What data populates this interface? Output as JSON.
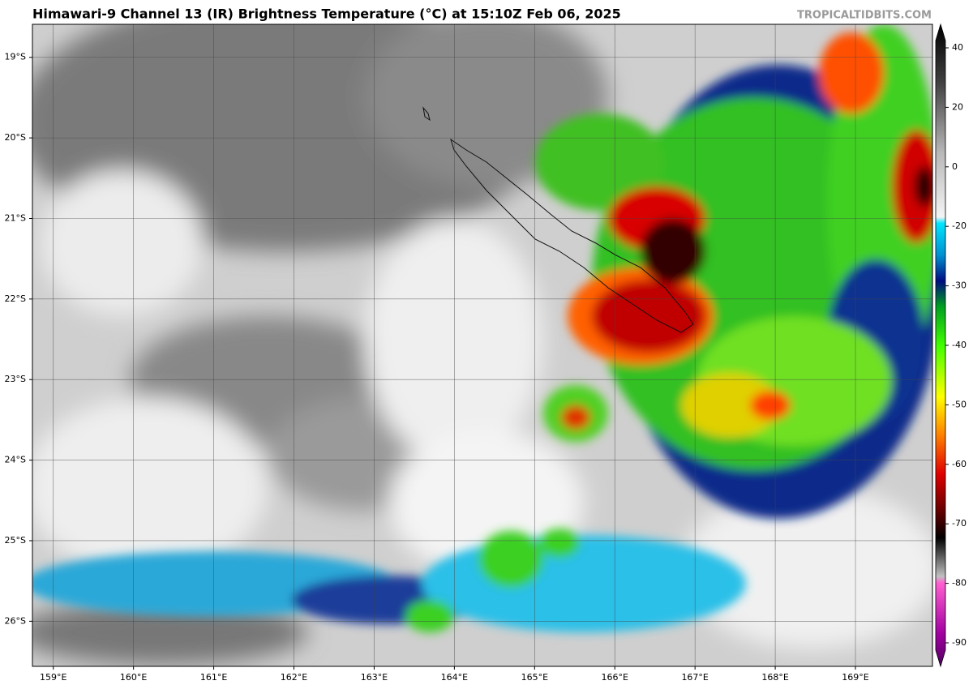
{
  "header": {
    "title": "Himawari-9 Channel 13 (IR) Brightness Temperature (°C) at 15:10Z Feb 06, 2025",
    "watermark": "TROPICALTIDBITS.COM"
  },
  "map": {
    "xlim": [
      158.74,
      169.96
    ],
    "ylim": [
      -26.56,
      -18.59
    ],
    "xticks": [
      {
        "value": 159,
        "label": "159°E"
      },
      {
        "value": 160,
        "label": "160°E"
      },
      {
        "value": 161,
        "label": "161°E"
      },
      {
        "value": 162,
        "label": "162°E"
      },
      {
        "value": 163,
        "label": "163°E"
      },
      {
        "value": 164,
        "label": "164°E"
      },
      {
        "value": 165,
        "label": "165°E"
      },
      {
        "value": 166,
        "label": "166°E"
      },
      {
        "value": 167,
        "label": "167°E"
      },
      {
        "value": 168,
        "label": "168°E"
      },
      {
        "value": 169,
        "label": "169°E"
      }
    ],
    "yticks": [
      {
        "value": -19,
        "label": "19°S"
      },
      {
        "value": -20,
        "label": "20°S"
      },
      {
        "value": -21,
        "label": "21°S"
      },
      {
        "value": -22,
        "label": "22°S"
      },
      {
        "value": -23,
        "label": "23°S"
      },
      {
        "value": -24,
        "label": "24°S"
      },
      {
        "value": -25,
        "label": "25°S"
      },
      {
        "value": -26,
        "label": "26°S"
      }
    ],
    "grid": true
  },
  "colorbar": {
    "ticks": [
      40,
      20,
      0,
      -20,
      -30,
      -40,
      -50,
      -60,
      -70,
      -80,
      -90
    ]
  }
}
